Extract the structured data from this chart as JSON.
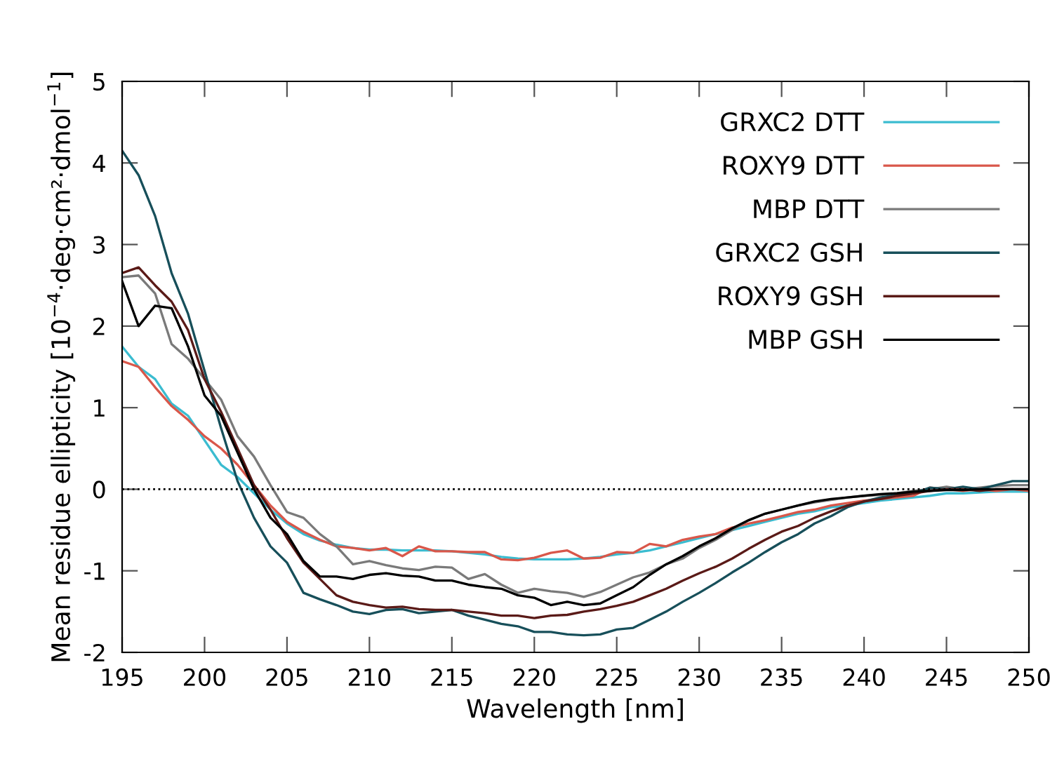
{
  "chart_data": {
    "type": "line",
    "xlabel": "Wavelength [nm]",
    "ylabel": "Mean residue ellipticity [10$^{−4}$·deg·cm²·dmol$^{−1}$]",
    "x": [
      195,
      196,
      197,
      198,
      199,
      200,
      201,
      202,
      203,
      204,
      205,
      206,
      207,
      208,
      209,
      210,
      211,
      212,
      213,
      214,
      215,
      216,
      217,
      218,
      219,
      220,
      221,
      222,
      223,
      224,
      225,
      226,
      227,
      228,
      229,
      230,
      231,
      232,
      233,
      234,
      235,
      236,
      237,
      238,
      239,
      240,
      241,
      242,
      243,
      244,
      245,
      246,
      247,
      248,
      249,
      250
    ],
    "series": [
      {
        "name": "GRXC2 DTT",
        "color": "#3bbcd0",
        "values": [
          1.75,
          1.5,
          1.35,
          1.05,
          0.9,
          0.6,
          0.3,
          0.15,
          -0.05,
          -0.25,
          -0.42,
          -0.55,
          -0.63,
          -0.68,
          -0.72,
          -0.74,
          -0.74,
          -0.75,
          -0.75,
          -0.75,
          -0.76,
          -0.78,
          -0.8,
          -0.83,
          -0.85,
          -0.86,
          -0.86,
          -0.86,
          -0.85,
          -0.83,
          -0.8,
          -0.78,
          -0.75,
          -0.7,
          -0.65,
          -0.6,
          -0.55,
          -0.5,
          -0.45,
          -0.4,
          -0.35,
          -0.3,
          -0.27,
          -0.22,
          -0.2,
          -0.17,
          -0.14,
          -0.12,
          -0.1,
          -0.08,
          -0.05,
          -0.05,
          -0.04,
          -0.03,
          -0.03,
          -0.03
        ]
      },
      {
        "name": "ROXY9 DTT",
        "color": "#d9574a",
        "values": [
          1.57,
          1.5,
          1.25,
          1.02,
          0.85,
          0.65,
          0.5,
          0.3,
          0.05,
          -0.2,
          -0.4,
          -0.52,
          -0.62,
          -0.7,
          -0.72,
          -0.75,
          -0.72,
          -0.82,
          -0.7,
          -0.76,
          -0.76,
          -0.77,
          -0.77,
          -0.86,
          -0.87,
          -0.84,
          -0.78,
          -0.75,
          -0.85,
          -0.84,
          -0.77,
          -0.78,
          -0.67,
          -0.7,
          -0.62,
          -0.58,
          -0.55,
          -0.47,
          -0.42,
          -0.38,
          -0.33,
          -0.28,
          -0.25,
          -0.2,
          -0.17,
          -0.14,
          -0.12,
          -0.1,
          -0.08,
          0.02,
          0.0,
          -0.02,
          0.0,
          -0.02,
          0.0,
          -0.02
        ]
      },
      {
        "name": "MBP DTT",
        "color": "#7a7a7a",
        "values": [
          2.6,
          2.62,
          2.4,
          1.78,
          1.6,
          1.35,
          1.1,
          0.65,
          0.4,
          0.05,
          -0.28,
          -0.35,
          -0.55,
          -0.7,
          -0.92,
          -0.88,
          -0.93,
          -0.97,
          -0.99,
          -0.95,
          -0.96,
          -1.1,
          -1.04,
          -1.17,
          -1.27,
          -1.22,
          -1.25,
          -1.27,
          -1.32,
          -1.26,
          -1.17,
          -1.08,
          -1.02,
          -0.92,
          -0.85,
          -0.72,
          -0.62,
          -0.5,
          -0.38,
          -0.3,
          -0.25,
          -0.2,
          -0.16,
          -0.13,
          -0.1,
          -0.08,
          -0.07,
          -0.05,
          -0.02,
          0.0,
          0.03,
          0.0,
          0.02,
          0.04,
          0.05,
          0.05
        ]
      },
      {
        "name": "GRXC2 GSH",
        "color": "#174f5a",
        "values": [
          4.15,
          3.85,
          3.35,
          2.65,
          2.15,
          1.45,
          0.75,
          0.1,
          -0.35,
          -0.7,
          -0.9,
          -1.27,
          -1.35,
          -1.42,
          -1.5,
          -1.53,
          -1.48,
          -1.47,
          -1.52,
          -1.5,
          -1.48,
          -1.55,
          -1.6,
          -1.65,
          -1.68,
          -1.75,
          -1.75,
          -1.78,
          -1.79,
          -1.78,
          -1.72,
          -1.7,
          -1.6,
          -1.5,
          -1.38,
          -1.27,
          -1.15,
          -1.02,
          -0.9,
          -0.77,
          -0.65,
          -0.55,
          -0.42,
          -0.33,
          -0.22,
          -0.15,
          -0.1,
          -0.07,
          -0.05,
          0.02,
          0.0,
          0.03,
          0.0,
          0.05,
          0.1,
          0.1
        ]
      },
      {
        "name": "ROXY9 GSH",
        "color": "#5a1a17",
        "values": [
          2.65,
          2.72,
          2.5,
          2.3,
          1.95,
          1.35,
          0.95,
          0.5,
          0.05,
          -0.25,
          -0.6,
          -0.9,
          -1.1,
          -1.3,
          -1.38,
          -1.42,
          -1.45,
          -1.44,
          -1.47,
          -1.48,
          -1.48,
          -1.5,
          -1.52,
          -1.55,
          -1.55,
          -1.58,
          -1.55,
          -1.54,
          -1.5,
          -1.47,
          -1.43,
          -1.38,
          -1.3,
          -1.22,
          -1.12,
          -1.03,
          -0.95,
          -0.85,
          -0.73,
          -0.62,
          -0.52,
          -0.45,
          -0.35,
          -0.27,
          -0.2,
          -0.15,
          -0.12,
          -0.08,
          -0.05,
          -0.02,
          0.0,
          0.0,
          -0.02,
          0.0,
          0.0,
          0.0
        ]
      },
      {
        "name": "MBP GSH",
        "color": "#000000",
        "values": [
          2.55,
          2.0,
          2.25,
          2.22,
          1.75,
          1.15,
          0.9,
          0.45,
          0.0,
          -0.35,
          -0.55,
          -0.88,
          -1.07,
          -1.07,
          -1.1,
          -1.05,
          -1.03,
          -1.06,
          -1.07,
          -1.12,
          -1.12,
          -1.17,
          -1.2,
          -1.22,
          -1.3,
          -1.33,
          -1.42,
          -1.38,
          -1.42,
          -1.4,
          -1.3,
          -1.2,
          -1.05,
          -0.92,
          -0.82,
          -0.7,
          -0.6,
          -0.48,
          -0.38,
          -0.3,
          -0.25,
          -0.2,
          -0.15,
          -0.12,
          -0.1,
          -0.08,
          -0.06,
          -0.05,
          -0.03,
          -0.02,
          -0.01,
          -0.01,
          0.0,
          0.0,
          0.0,
          0.0
        ]
      }
    ],
    "xlim": [
      195,
      250
    ],
    "xticks": [
      195,
      200,
      205,
      210,
      215,
      220,
      225,
      230,
      235,
      240,
      245,
      250
    ],
    "ylim": [
      -2,
      5
    ],
    "yticks": [
      -2,
      -1,
      0,
      1,
      2,
      3,
      4,
      5
    ],
    "ref_lines": [
      {
        "axis": "y",
        "value": 0,
        "color": "#000000",
        "line_style": "dotted"
      }
    ],
    "legend": "top right",
    "grid": false
  }
}
